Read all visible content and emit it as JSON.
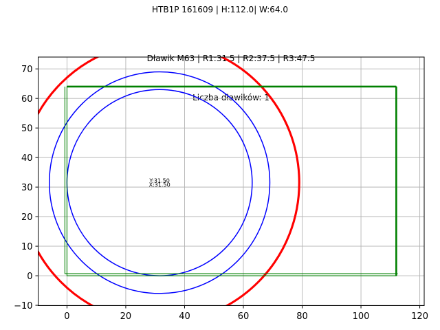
{
  "titles": {
    "suptitle": "HTB1P 161609 | H:112.0| W:64.0",
    "axes_title_line1": "Dławik M63 | R1:31.5 | R2:37.5 | R3:47.5",
    "axes_title_line2": "Liczba dławików: 1"
  },
  "chart_data": {
    "type": "line",
    "suptitle": "HTB1P 161609 | H:112.0| W:64.0",
    "title": "Dławik M63 | R1:31.5 | R2:37.5 | R3:47.5",
    "subtitle": "Liczba dławików: 1",
    "xlim": [
      -9.8,
      121.5
    ],
    "ylim": [
      -10.1,
      74.0
    ],
    "xticks": [
      0,
      20,
      40,
      60,
      80,
      100,
      120
    ],
    "yticks": [
      -10,
      0,
      10,
      20,
      30,
      40,
      50,
      60,
      70
    ],
    "grid": true,
    "grid_color": "#b4b4b4",
    "aspect": "equal",
    "legend": "none",
    "plate": {
      "x": 0,
      "y": 0,
      "width": 112,
      "height": 64,
      "color": "#008000",
      "thick_lw": 2.6,
      "thin_lw": 1.1,
      "thick_edges": [
        "top",
        "right"
      ],
      "companion_offset": 0.7
    },
    "circles": [
      {
        "name": "R1",
        "cx": 31.5,
        "cy": 31.5,
        "r": 31.5,
        "color": "#0000ff",
        "lw": 1.5
      },
      {
        "name": "R2",
        "cx": 31.5,
        "cy": 31.5,
        "r": 37.5,
        "color": "#0000ff",
        "lw": 1.5
      },
      {
        "name": "R3",
        "cx": 31.5,
        "cy": 31.5,
        "r": 47.5,
        "color": "#ff0000",
        "lw": 3.1
      }
    ],
    "annotations": [
      {
        "name": "y-value-label",
        "text": "Y:31.50",
        "x": 31.5,
        "y": 32.3
      },
      {
        "name": "x-value-label",
        "text": "X:31.50",
        "x": 31.5,
        "y": 30.9
      }
    ]
  }
}
